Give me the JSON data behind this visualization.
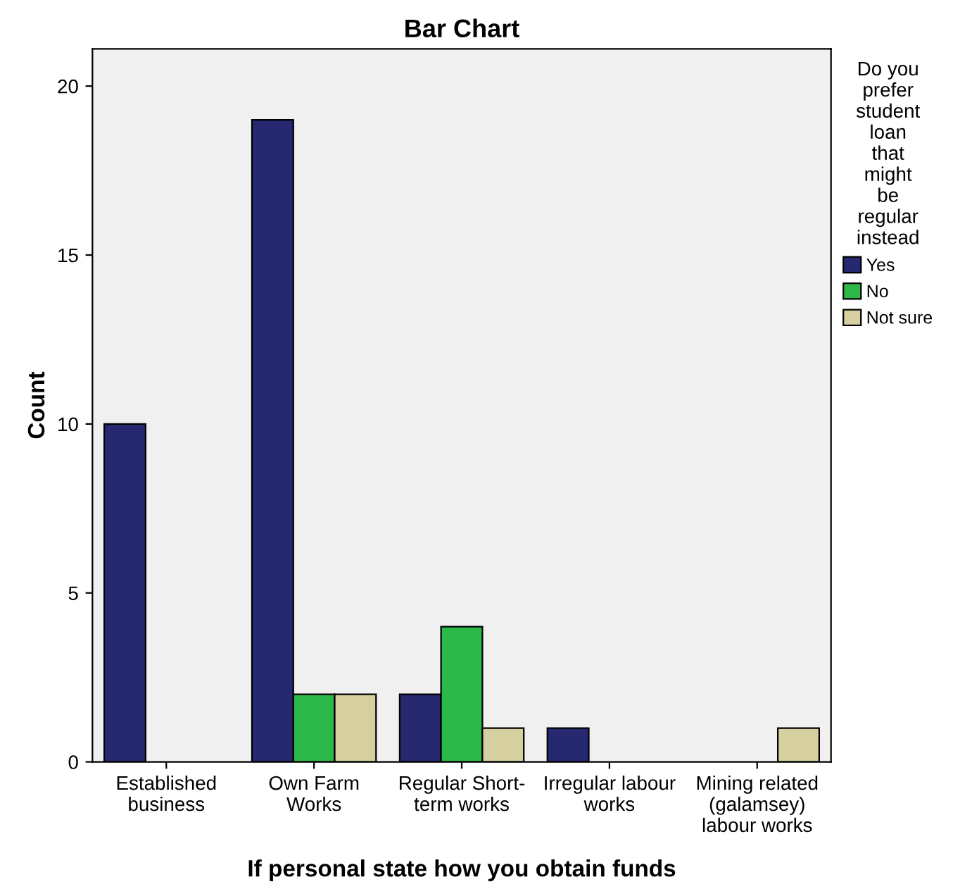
{
  "chart_data": {
    "type": "bar",
    "title": "Bar Chart",
    "xlabel": "If personal state how you obtain funds",
    "ylabel": "Count",
    "legend_title": "Do you\nprefer\nstudent\nloan\nthat\nmight\nbe\nregular\ninstead",
    "legend": "right",
    "categories": [
      "Established\nbusiness",
      "Own Farm\nWorks",
      "Regular Short-\nterm works",
      "Irregular labour\nworks",
      "Mining related\n(galamsey)\nlabour works"
    ],
    "series": [
      {
        "name": "Yes",
        "color": "#262870",
        "values": [
          10,
          19,
          2,
          1,
          0
        ]
      },
      {
        "name": "No",
        "color": "#2db84a",
        "values": [
          0,
          2,
          4,
          0,
          0
        ]
      },
      {
        "name": "Not sure",
        "color": "#d6d0a0",
        "values": [
          0,
          2,
          1,
          0,
          1
        ]
      }
    ],
    "ylim": [
      0,
      21.1
    ],
    "yticks": [
      0,
      5,
      10,
      15,
      20
    ],
    "grid": false
  }
}
